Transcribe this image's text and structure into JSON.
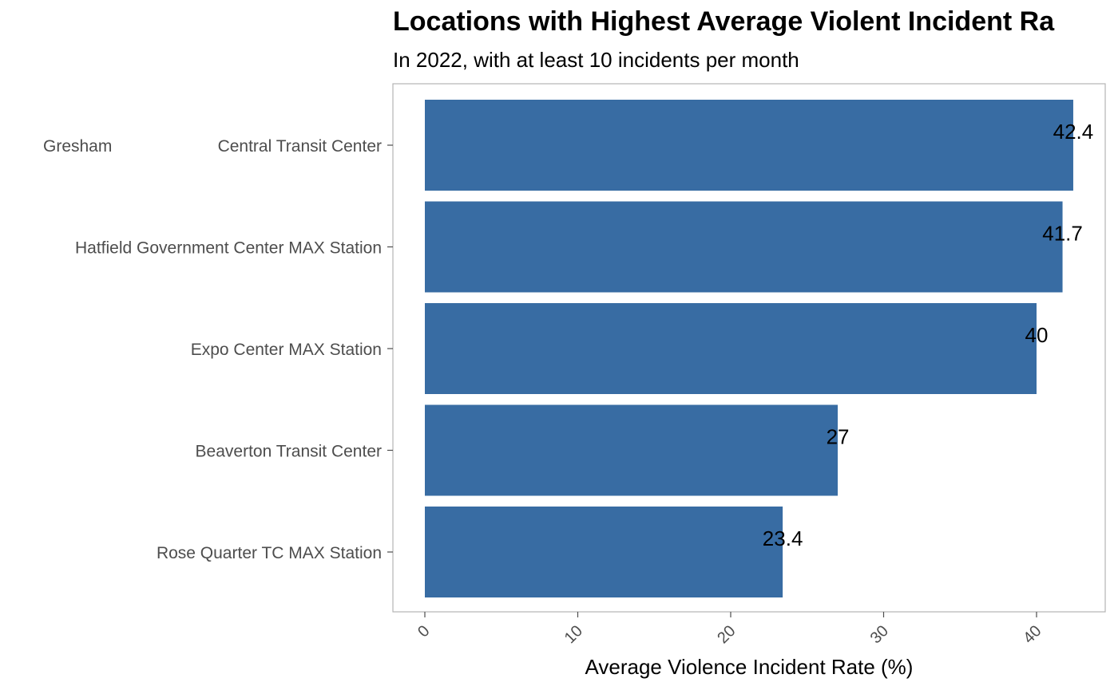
{
  "chart_data": {
    "type": "bar",
    "orientation": "horizontal",
    "title": "Locations with Highest Average Violent Incident Ra",
    "subtitle": "In 2022, with at least 10 incidents per month",
    "xlabel": "Average Violence Incident Rate (%)",
    "ylabel": "",
    "categories": [
      "Central Transit Center",
      "Hatfield Government Center MAX Station",
      "Expo Center MAX Station",
      "Beaverton Transit Center",
      "Rose Quarter TC MAX Station"
    ],
    "category_prefix": [
      "Gresham",
      "",
      "",
      "",
      ""
    ],
    "values": [
      42.4,
      41.7,
      40,
      27,
      23.4
    ],
    "data_labels": [
      "42.4",
      "41.7",
      "40",
      "27",
      "23.4"
    ],
    "xticks": [
      0,
      10,
      20,
      30,
      40
    ],
    "xlim": [
      0,
      44.5
    ],
    "grid": false,
    "bar_color": "#386CA3"
  }
}
